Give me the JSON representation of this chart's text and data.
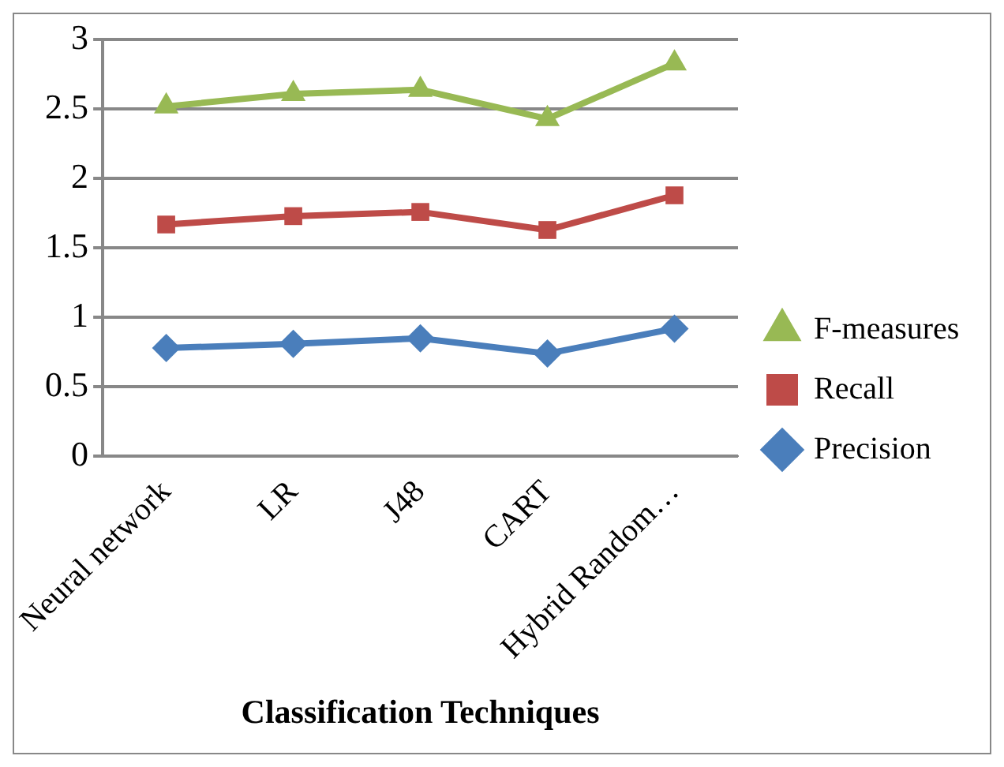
{
  "chart_data": {
    "type": "line",
    "xlabel": "Classification Techniques",
    "categories": [
      "Neural network",
      "LR",
      "J48",
      "CART",
      "Hybrid Random…"
    ],
    "series": [
      {
        "name": "Precision",
        "color": "#4a7ebb",
        "marker": "diamond",
        "values": [
          0.78,
          0.81,
          0.85,
          0.74,
          0.92
        ]
      },
      {
        "name": "Recall",
        "color": "#be4b48",
        "marker": "square",
        "values": [
          1.67,
          1.73,
          1.76,
          1.63,
          1.88
        ]
      },
      {
        "name": "F-measures",
        "color": "#98b954",
        "marker": "triangle",
        "values": [
          2.52,
          2.61,
          2.64,
          2.43,
          2.83
        ]
      }
    ],
    "ylim": [
      0,
      3
    ],
    "yticks": [
      0,
      0.5,
      1,
      1.5,
      2,
      2.5,
      3
    ],
    "grid": "y",
    "legend": "right"
  }
}
